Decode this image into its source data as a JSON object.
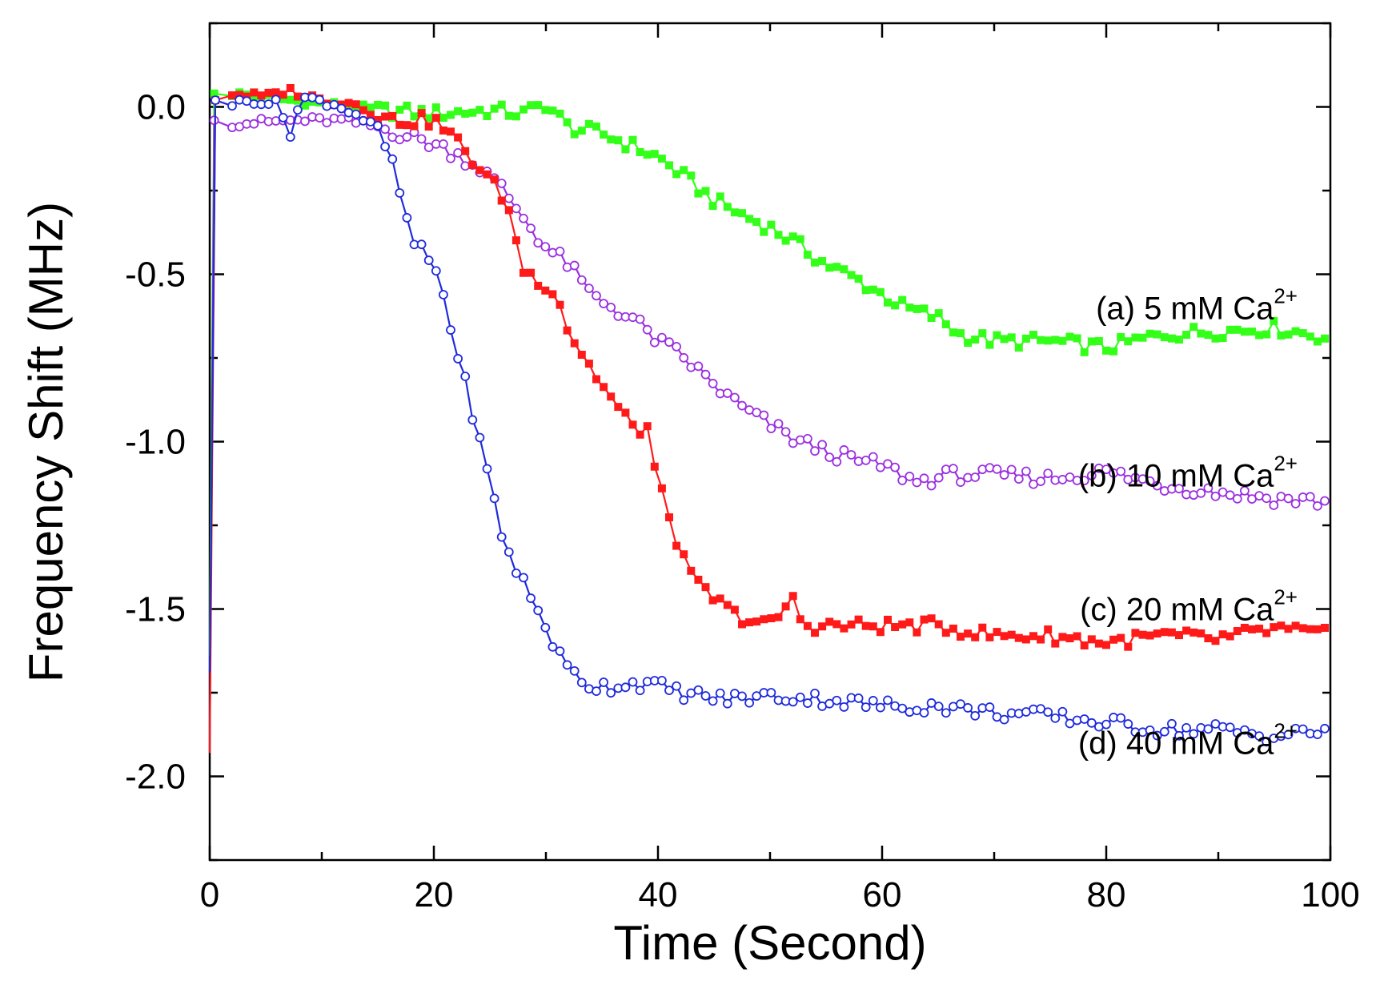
{
  "chart_data": {
    "type": "line",
    "title": "",
    "xlabel": "Time (Second)",
    "ylabel": "Frequency Shift (MHz)",
    "xlim": [
      0,
      100
    ],
    "ylim": [
      -2.25,
      0.25
    ],
    "xticks": [
      0,
      20,
      40,
      60,
      80,
      100
    ],
    "xtick_labels": [
      "0",
      "20",
      "40",
      "60",
      "80",
      "100"
    ],
    "yticks": [
      0.0,
      -0.5,
      -1.0,
      -1.5,
      -2.0
    ],
    "ytick_labels": [
      "0.0",
      "-0.5",
      "-1.0",
      "-1.5",
      "-2.0"
    ],
    "grid": false,
    "series": [
      {
        "name": "a",
        "label_prefix": "(a) 5 mM Ca",
        "label_sup": "2+",
        "label_value": -0.6,
        "color": "#33ff19",
        "marker": "square-filled",
        "start": [
          [
            0,
            -1.64
          ],
          [
            0.4,
            0.04
          ]
        ],
        "points": [
          [
            2,
            0.04
          ],
          [
            10,
            0.01
          ],
          [
            15,
            -0.01
          ],
          [
            20,
            -0.02
          ],
          [
            25,
            -0.01
          ],
          [
            28,
            -0.02
          ],
          [
            30,
            0.01
          ],
          [
            32,
            -0.06
          ],
          [
            35,
            -0.08
          ],
          [
            38,
            -0.12
          ],
          [
            40,
            -0.15
          ],
          [
            42,
            -0.2
          ],
          [
            45,
            -0.28
          ],
          [
            48,
            -0.33
          ],
          [
            50,
            -0.36
          ],
          [
            52,
            -0.4
          ],
          [
            55,
            -0.47
          ],
          [
            58,
            -0.52
          ],
          [
            60,
            -0.56
          ],
          [
            62,
            -0.6
          ],
          [
            65,
            -0.63
          ],
          [
            67,
            -0.68
          ],
          [
            70,
            -0.7
          ],
          [
            75,
            -0.7
          ],
          [
            80,
            -0.72
          ],
          [
            85,
            -0.68
          ],
          [
            90,
            -0.67
          ],
          [
            95,
            -0.66
          ],
          [
            100,
            -0.69
          ]
        ]
      },
      {
        "name": "b",
        "label_prefix": "(b) 10 mM Ca",
        "label_sup": "2+",
        "label_value": -1.1,
        "color": "#9b30e0",
        "marker": "circle-open",
        "start": [
          [
            0,
            -1.92
          ],
          [
            0.4,
            -0.04
          ]
        ],
        "points": [
          [
            2,
            -0.05
          ],
          [
            8,
            -0.04
          ],
          [
            12,
            -0.04
          ],
          [
            15,
            -0.06
          ],
          [
            18,
            -0.09
          ],
          [
            20,
            -0.11
          ],
          [
            22,
            -0.14
          ],
          [
            24,
            -0.18
          ],
          [
            26,
            -0.24
          ],
          [
            28,
            -0.33
          ],
          [
            30,
            -0.42
          ],
          [
            32,
            -0.47
          ],
          [
            34,
            -0.56
          ],
          [
            36,
            -0.6
          ],
          [
            38,
            -0.64
          ],
          [
            40,
            -0.7
          ],
          [
            42,
            -0.74
          ],
          [
            44,
            -0.8
          ],
          [
            46,
            -0.86
          ],
          [
            48,
            -0.91
          ],
          [
            50,
            -0.95
          ],
          [
            52,
            -0.99
          ],
          [
            55,
            -1.03
          ],
          [
            58,
            -1.06
          ],
          [
            60,
            -1.07
          ],
          [
            63,
            -1.12
          ],
          [
            66,
            -1.1
          ],
          [
            70,
            -1.1
          ],
          [
            75,
            -1.11
          ],
          [
            80,
            -1.09
          ],
          [
            85,
            -1.13
          ],
          [
            90,
            -1.15
          ],
          [
            95,
            -1.17
          ],
          [
            100,
            -1.18
          ]
        ]
      },
      {
        "name": "c",
        "label_prefix": "(c) 20 mM Ca",
        "label_sup": "2+",
        "label_value": -1.5,
        "color": "#ff1a1a",
        "marker": "square-filled",
        "start": [
          [
            0,
            -1.93
          ],
          [
            0.5,
            0.02
          ]
        ],
        "points": [
          [
            2,
            0.04
          ],
          [
            5,
            0.03
          ],
          [
            7,
            0.05
          ],
          [
            10,
            0.02
          ],
          [
            13,
            0.01
          ],
          [
            16,
            -0.04
          ],
          [
            20,
            -0.04
          ],
          [
            22,
            -0.1
          ],
          [
            24,
            -0.18
          ],
          [
            26,
            -0.26
          ],
          [
            27,
            -0.34
          ],
          [
            28,
            -0.49
          ],
          [
            30,
            -0.53
          ],
          [
            31,
            -0.56
          ],
          [
            32,
            -0.67
          ],
          [
            34,
            -0.78
          ],
          [
            36,
            -0.88
          ],
          [
            38,
            -0.97
          ],
          [
            39,
            -0.95
          ],
          [
            40,
            -1.13
          ],
          [
            41,
            -1.22
          ],
          [
            42,
            -1.33
          ],
          [
            43,
            -1.41
          ],
          [
            45,
            -1.47
          ],
          [
            47,
            -1.52
          ],
          [
            50,
            -1.55
          ],
          [
            52,
            -1.47
          ],
          [
            53,
            -1.55
          ],
          [
            55,
            -1.55
          ],
          [
            60,
            -1.55
          ],
          [
            65,
            -1.55
          ],
          [
            70,
            -1.58
          ],
          [
            75,
            -1.58
          ],
          [
            80,
            -1.6
          ],
          [
            85,
            -1.58
          ],
          [
            90,
            -1.59
          ],
          [
            95,
            -1.56
          ],
          [
            100,
            -1.58
          ]
        ]
      },
      {
        "name": "d",
        "label_prefix": "(d) 40 mM Ca",
        "label_sup": "2+",
        "label_value": -1.9,
        "color": "#1f2bdc",
        "marker": "circle-open",
        "start": [
          [
            0,
            -1.69
          ],
          [
            0.5,
            0.02
          ]
        ],
        "points": [
          [
            2,
            0.01
          ],
          [
            4,
            0.02
          ],
          [
            6,
            0.01
          ],
          [
            7.5,
            -0.1
          ],
          [
            8,
            0.03
          ],
          [
            11,
            0.01
          ],
          [
            13,
            -0.02
          ],
          [
            15,
            -0.07
          ],
          [
            16,
            -0.14
          ],
          [
            17,
            -0.26
          ],
          [
            18,
            -0.4
          ],
          [
            20,
            -0.47
          ],
          [
            21,
            -0.58
          ],
          [
            22,
            -0.73
          ],
          [
            23,
            -0.85
          ],
          [
            24,
            -0.99
          ],
          [
            25,
            -1.12
          ],
          [
            26,
            -1.27
          ],
          [
            27,
            -1.36
          ],
          [
            28,
            -1.42
          ],
          [
            29,
            -1.49
          ],
          [
            30,
            -1.55
          ],
          [
            31,
            -1.63
          ],
          [
            32,
            -1.68
          ],
          [
            34,
            -1.73
          ],
          [
            36,
            -1.73
          ],
          [
            38,
            -1.72
          ],
          [
            40,
            -1.73
          ],
          [
            42,
            -1.75
          ],
          [
            44,
            -1.76
          ],
          [
            46,
            -1.77
          ],
          [
            50,
            -1.76
          ],
          [
            55,
            -1.77
          ],
          [
            60,
            -1.79
          ],
          [
            65,
            -1.79
          ],
          [
            70,
            -1.81
          ],
          [
            75,
            -1.82
          ],
          [
            80,
            -1.84
          ],
          [
            85,
            -1.86
          ],
          [
            90,
            -1.86
          ],
          [
            95,
            -1.88
          ],
          [
            100,
            -1.86
          ]
        ]
      }
    ]
  }
}
